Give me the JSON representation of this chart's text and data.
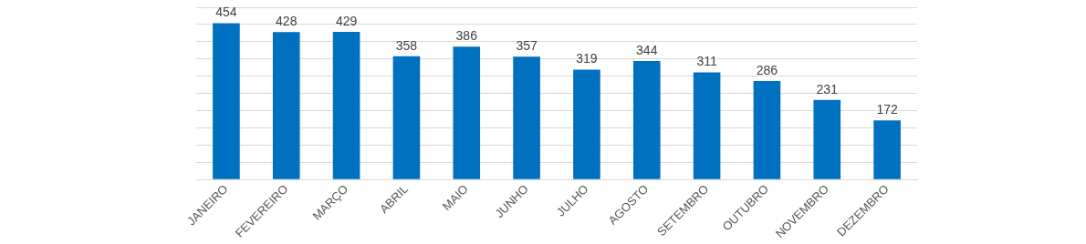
{
  "chart_data": {
    "type": "bar",
    "categories": [
      "JANEIRO",
      "FEVEREIRO",
      "MARÇO",
      "ABRIL",
      "MAIO",
      "JUNHO",
      "JULHO",
      "AGOSTO",
      "SETEMBRO",
      "OUTUBRO",
      "NOVEMBRO",
      "DEZEMBRO"
    ],
    "values": [
      454,
      428,
      429,
      358,
      386,
      357,
      319,
      344,
      311,
      286,
      231,
      172
    ],
    "color": "#0070c0",
    "ylim": [
      0,
      500
    ],
    "yticks": [
      {
        "value": 0,
        "label": null
      },
      {
        "value": 50,
        "label": null
      },
      {
        "value": 100,
        "label": null
      },
      {
        "value": 150,
        "label": null
      },
      {
        "value": 200,
        "label": null
      },
      {
        "value": 250,
        "label": null
      },
      {
        "value": 300,
        "label": null
      },
      {
        "value": 350,
        "label": null
      },
      {
        "value": 400,
        "label": null
      },
      {
        "value": 450,
        "label": null
      },
      {
        "value": 500,
        "label": null
      }
    ],
    "tick_labels": "x",
    "grid": "y",
    "data_labels": true,
    "legend": false
  }
}
